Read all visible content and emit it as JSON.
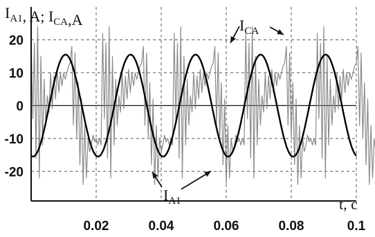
{
  "chart_data": {
    "type": "line",
    "title": "",
    "ylabel": {
      "parts": [
        {
          "t": "I",
          "sub": "A1"
        },
        {
          "t": ", A; "
        },
        {
          "t": "I",
          "sub": "CA"
        },
        {
          "t": ",A"
        }
      ]
    },
    "xlabel": "t, c",
    "xlim": [
      0,
      0.1
    ],
    "ylim": [
      -29,
      30
    ],
    "x_ticks": [
      {
        "v": 0.02,
        "label": "0.02"
      },
      {
        "v": 0.04,
        "label": "0.04"
      },
      {
        "v": 0.06,
        "label": "0.06"
      },
      {
        "v": 0.08,
        "label": "0.08"
      },
      {
        "v": 0.1,
        "label": "0.1"
      }
    ],
    "y_ticks": [
      {
        "v": 20,
        "label": "20"
      },
      {
        "v": 10,
        "label": "10"
      },
      {
        "v": 0,
        "label": "0"
      },
      {
        "v": -10,
        "label": "-10"
      },
      {
        "v": -20,
        "label": "-20"
      }
    ],
    "grid": true,
    "series": [
      {
        "id": "ica",
        "label": {
          "t": "I",
          "sub": "CA"
        },
        "color": "#8a8a8a",
        "type": "sampled",
        "description": "distorted compensating current with high-frequency ripple",
        "x_start": 0.0,
        "dx": 0.0005,
        "values": [
          22,
          -4,
          19,
          -16,
          24,
          -22,
          15,
          -12,
          8,
          -6,
          3,
          -2,
          10,
          -1,
          9,
          2,
          11,
          4,
          10,
          6,
          10,
          8,
          10,
          12,
          13,
          18,
          -6,
          16,
          -10,
          7,
          -18,
          2,
          -24,
          -6,
          -22,
          -10,
          -14,
          -12,
          -9,
          -11,
          -10,
          -12,
          -10,
          -12,
          22,
          -4,
          19,
          -16,
          24,
          -22,
          15,
          -12,
          8,
          -6,
          3,
          -2,
          10,
          -1,
          9,
          2,
          11,
          4,
          10,
          6,
          10,
          8,
          10,
          12,
          13,
          18,
          -6,
          16,
          -10,
          7,
          -18,
          2,
          -24,
          -6,
          -22,
          -10,
          -14,
          -12,
          -9,
          -11,
          -10,
          -12,
          -10,
          -12,
          22,
          -4,
          19,
          -16,
          24,
          -22,
          15,
          -12,
          8,
          -6,
          3,
          -2,
          10,
          -1,
          9,
          2,
          11,
          4,
          10,
          6,
          10,
          8,
          10,
          12,
          13,
          18,
          -6,
          16,
          -10,
          7,
          -18,
          2,
          -24,
          -6,
          -22,
          -10,
          -14,
          -12,
          -9,
          -11,
          -10,
          -12,
          -10,
          -12,
          22,
          -4,
          19,
          -16,
          24,
          -22,
          15,
          -12,
          8,
          -6,
          3,
          -2,
          10,
          -1,
          9,
          2,
          11,
          4,
          10,
          6,
          10,
          8,
          10,
          12,
          13,
          18,
          -6,
          16,
          -10,
          7,
          -18,
          2,
          -24,
          -6,
          -22,
          -10,
          -14,
          -12,
          -9,
          -11,
          -10,
          -12,
          -10,
          -12,
          22,
          -4,
          19,
          -16,
          24,
          -22,
          15,
          -12,
          8,
          -6,
          3,
          -2,
          10,
          -1,
          9,
          2,
          11,
          4,
          10,
          6,
          10,
          8,
          10,
          12,
          13,
          18,
          -6,
          16,
          -10,
          7,
          -18,
          2,
          -24,
          -6,
          -22,
          -10,
          -14,
          -12,
          -9,
          -11,
          -10,
          -12,
          -10,
          -12,
          22
        ]
      },
      {
        "id": "ia1",
        "label": {
          "t": "I",
          "sub": "A1"
        },
        "color": "#000000",
        "type": "sinusoid",
        "amplitude": 15.5,
        "offset": 0,
        "frequency_hz": 50,
        "phase_rad": -1.75,
        "x_range": [
          0,
          0.1
        ]
      }
    ]
  }
}
